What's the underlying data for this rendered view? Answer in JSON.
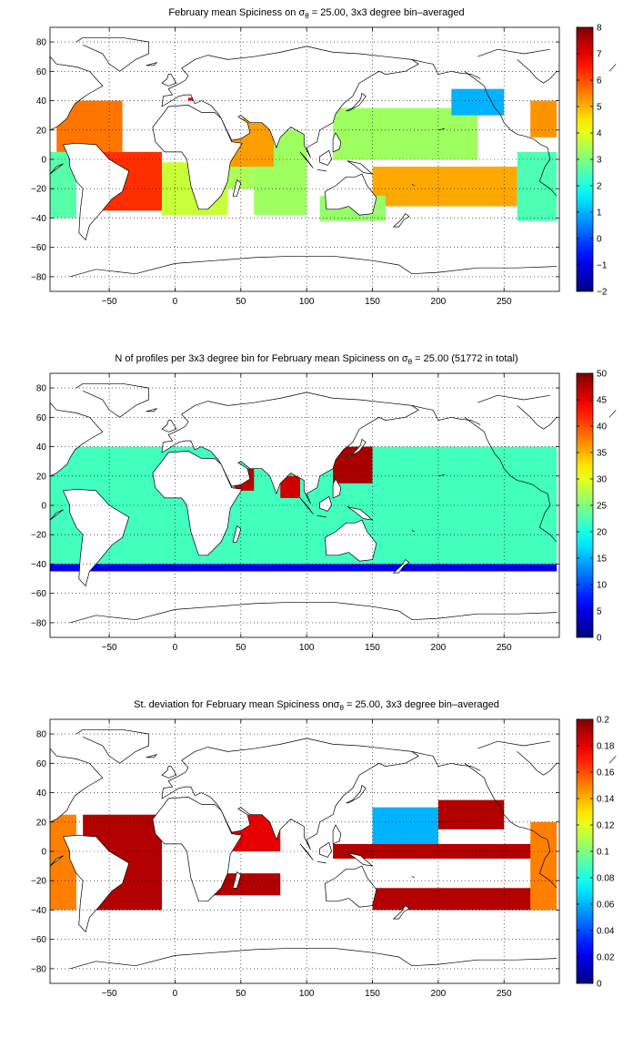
{
  "chart_data": [
    {
      "type": "heatmap",
      "title_prefix": "February mean Spiciness on ",
      "title_sigma": "σ",
      "title_sub": "θ",
      "title_suffix": " = 25.00, 3x3 degree bin–averaged",
      "xlim": [
        -95,
        292
      ],
      "ylim": [
        -90,
        90
      ],
      "xticks": [
        -50,
        0,
        50,
        100,
        150,
        200,
        250
      ],
      "xtick_labels": [
        "−50",
        "0",
        "50",
        "100",
        "150",
        "200",
        "250"
      ],
      "yticks": [
        80,
        60,
        40,
        20,
        0,
        -20,
        -40,
        -60,
        -80
      ],
      "ytick_labels": [
        "80",
        "60",
        "40",
        "20",
        "0",
        "−20",
        "−40",
        "−60",
        "−80"
      ],
      "grid": "dotted",
      "colorbar": {
        "location": "right",
        "range": [
          -2,
          8
        ],
        "ticks": [
          8,
          7,
          6,
          5,
          4,
          3,
          2,
          1,
          0,
          -1,
          -2
        ],
        "tick_labels": [
          "8",
          "7",
          "6",
          "5",
          "4",
          "3",
          "2",
          "1",
          "0",
          "−1",
          "−2"
        ],
        "colormap": "jet"
      },
      "regions": [
        {
          "lon": [
            -90,
            -40
          ],
          "lat": [
            5,
            40
          ],
          "value": 5.6
        },
        {
          "lon": [
            -60,
            -10
          ],
          "lat": [
            -35,
            5
          ],
          "value": 6.3
        },
        {
          "lon": [
            -10,
            40
          ],
          "lat": [
            -38,
            -2
          ],
          "value": 3.7
        },
        {
          "lon": [
            -95,
            -75
          ],
          "lat": [
            -40,
            5
          ],
          "value": 2.6
        },
        {
          "lon": [
            30,
            60
          ],
          "lat": [
            -20,
            10
          ],
          "value": 3.4
        },
        {
          "lon": [
            60,
            100
          ],
          "lat": [
            -38,
            20
          ],
          "value": 3.3
        },
        {
          "lon": [
            40,
            75
          ],
          "lat": [
            -5,
            28
          ],
          "value": 5.2
        },
        {
          "lon": [
            10,
            15
          ],
          "lat": [
            40,
            42
          ],
          "value": 7.0
        },
        {
          "lon": [
            120,
            230
          ],
          "lat": [
            0,
            35
          ],
          "value": 3.3
        },
        {
          "lon": [
            150,
            260
          ],
          "lat": [
            -32,
            -5
          ],
          "value": 5.1
        },
        {
          "lon": [
            210,
            250
          ],
          "lat": [
            30,
            48
          ],
          "value": 1.0
        },
        {
          "lon": [
            110,
            160
          ],
          "lat": [
            -42,
            -25
          ],
          "value": 3.2
        },
        {
          "lon": [
            260,
            290
          ],
          "lat": [
            -42,
            5
          ],
          "value": 2.5
        },
        {
          "lon": [
            270,
            290
          ],
          "lat": [
            15,
            40
          ],
          "value": 5.3
        }
      ]
    },
    {
      "type": "heatmap",
      "title_prefix": "N of profiles per 3x3 degree bin for February mean Spiciness on ",
      "title_sigma": "σ",
      "title_sub": "θ",
      "title_suffix": " = 25.00 (51772 in total)",
      "xlim": [
        -95,
        292
      ],
      "ylim": [
        -90,
        90
      ],
      "xticks": [
        -50,
        0,
        50,
        100,
        150,
        200,
        250
      ],
      "xtick_labels": [
        "−50",
        "0",
        "50",
        "100",
        "150",
        "200",
        "250"
      ],
      "yticks": [
        80,
        60,
        40,
        20,
        0,
        -20,
        -40,
        -60,
        -80
      ],
      "ytick_labels": [
        "80",
        "60",
        "40",
        "20",
        "0",
        "−20",
        "−40",
        "−60",
        "−80"
      ],
      "grid": "dotted",
      "colorbar": {
        "location": "right",
        "range": [
          0,
          50
        ],
        "ticks": [
          50,
          45,
          40,
          35,
          30,
          25,
          20,
          15,
          10,
          5,
          0
        ],
        "tick_labels": [
          "50",
          "45",
          "40",
          "35",
          "30",
          "25",
          "20",
          "15",
          "10",
          "5",
          "0"
        ],
        "colormap": "jet"
      },
      "regions": [
        {
          "lon": [
            -95,
            290
          ],
          "lat": [
            -40,
            40
          ],
          "value": 22
        },
        {
          "lon": [
            120,
            150
          ],
          "lat": [
            15,
            40
          ],
          "value": 48
        },
        {
          "lon": [
            45,
            60
          ],
          "lat": [
            10,
            25
          ],
          "value": 47
        },
        {
          "lon": [
            80,
            95
          ],
          "lat": [
            5,
            20
          ],
          "value": 46
        },
        {
          "lon": [
            -95,
            290
          ],
          "lat": [
            -45,
            -40
          ],
          "value": 5
        }
      ]
    },
    {
      "type": "heatmap",
      "title_prefix": "St. deviation for February mean Spiciness on",
      "title_sigma": "σ",
      "title_sub": "θ",
      "title_suffix": " = 25.00, 3x3 degree bin–averaged",
      "xlim": [
        -95,
        292
      ],
      "ylim": [
        -90,
        90
      ],
      "xticks": [
        -50,
        0,
        50,
        100,
        150,
        200,
        250
      ],
      "xtick_labels": [
        "−50",
        "0",
        "50",
        "100",
        "150",
        "200",
        "250"
      ],
      "yticks": [
        80,
        60,
        40,
        20,
        0,
        -20,
        -40,
        -60,
        -80
      ],
      "ytick_labels": [
        "80",
        "60",
        "40",
        "20",
        "0",
        "−20",
        "−40",
        "−60",
        "−80"
      ],
      "grid": "dotted",
      "colorbar": {
        "location": "right",
        "range": [
          0,
          0.2
        ],
        "ticks": [
          0.2,
          0.18,
          0.16,
          0.14,
          0.12,
          0.1,
          0.08,
          0.06,
          0.04,
          0.02,
          0
        ],
        "tick_labels": [
          "0.2",
          "0.18",
          "0.16",
          "0.14",
          "0.12",
          "0.1",
          "0.08",
          "0.06",
          "0.04",
          "0.02",
          "0"
        ],
        "colormap": "jet"
      },
      "regions": [
        {
          "lon": [
            -70,
            -10
          ],
          "lat": [
            -40,
            25
          ],
          "value": 0.19
        },
        {
          "lon": [
            20,
            80
          ],
          "lat": [
            -30,
            -15
          ],
          "value": 0.19
        },
        {
          "lon": [
            40,
            80
          ],
          "lat": [
            0,
            25
          ],
          "value": 0.18
        },
        {
          "lon": [
            120,
            280
          ],
          "lat": [
            -5,
            5
          ],
          "value": 0.19
        },
        {
          "lon": [
            150,
            280
          ],
          "lat": [
            -40,
            -25
          ],
          "value": 0.19
        },
        {
          "lon": [
            200,
            250
          ],
          "lat": [
            15,
            35
          ],
          "value": 0.19
        },
        {
          "lon": [
            -95,
            -75
          ],
          "lat": [
            -40,
            25
          ],
          "value": 0.15
        },
        {
          "lon": [
            150,
            200
          ],
          "lat": [
            5,
            30
          ],
          "value": 0.06
        },
        {
          "lon": [
            270,
            290
          ],
          "lat": [
            -40,
            20
          ],
          "value": 0.15
        }
      ]
    }
  ]
}
